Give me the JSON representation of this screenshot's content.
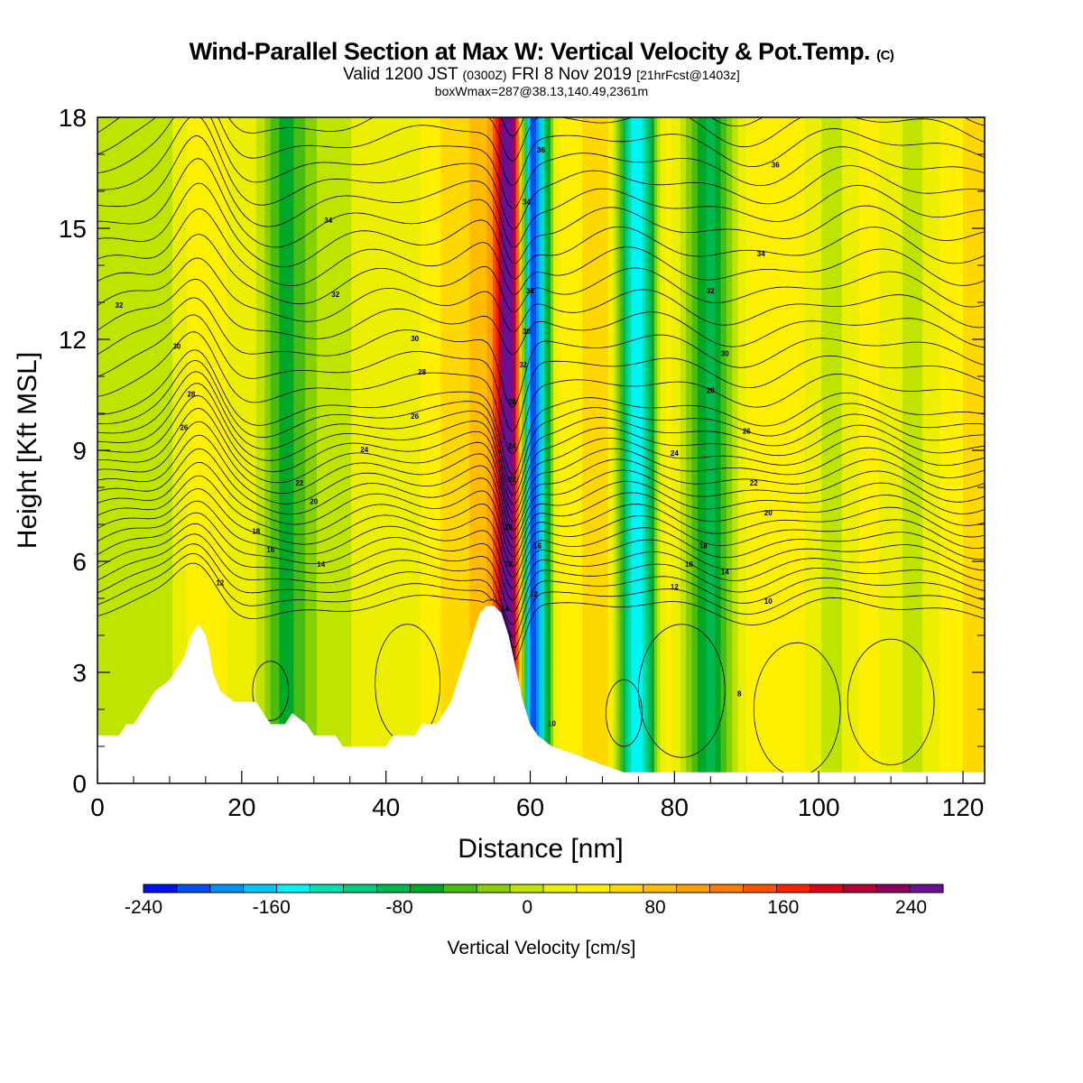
{
  "title": {
    "main": "Wind-Parallel Section at Max W: Vertical Velocity & Pot.Temp.",
    "main_unit": "(C)",
    "valid_prefix": "Valid 1200 JST",
    "valid_utc": "(0300Z)",
    "valid_date": "FRI 8 Nov 2019",
    "forecast": "[21hrFcst@1403z]",
    "box_info": "boxWmax=287@38.13,140.49,2361m"
  },
  "colors": {
    "scale": [
      "#0010ee",
      "#0050f4",
      "#0090f8",
      "#00c8ff",
      "#00f4f4",
      "#00e0b0",
      "#00cc80",
      "#00b850",
      "#00a828",
      "#48bc10",
      "#88d000",
      "#c0e400",
      "#ecf000",
      "#fff000",
      "#ffd800",
      "#ffbc00",
      "#ffa000",
      "#ff7c00",
      "#ff5000",
      "#ff2000",
      "#e00018",
      "#b80038",
      "#900060",
      "#6a1090"
    ],
    "terrain": "#ffffff",
    "contour": "#000000"
  },
  "chart_data": {
    "type": "heatmap",
    "xlabel": "Distance [nm]",
    "ylabel": "Height [Kft MSL]",
    "xlim": [
      0,
      123
    ],
    "ylim": [
      0,
      18
    ],
    "xticks": [
      0,
      20,
      40,
      60,
      80,
      100,
      120
    ],
    "yticks": [
      0,
      3,
      6,
      9,
      12,
      15,
      18
    ],
    "colorbar": {
      "title": "Vertical Velocity [cm/s]",
      "min": -240,
      "max": 240,
      "step": 20,
      "tick_values": [
        -240,
        -160,
        -80,
        0,
        80,
        160,
        240
      ]
    },
    "terrain_profile": [
      [
        0,
        1.3
      ],
      [
        3,
        1.3
      ],
      [
        4,
        1.6
      ],
      [
        5,
        1.6
      ],
      [
        6,
        1.9
      ],
      [
        7,
        2.2
      ],
      [
        8,
        2.5
      ],
      [
        10,
        2.8
      ],
      [
        11,
        3.1
      ],
      [
        12,
        3.4
      ],
      [
        12.5,
        3.7
      ],
      [
        13,
        4.0
      ],
      [
        14,
        4.3
      ],
      [
        15,
        4.0
      ],
      [
        15.5,
        3.6
      ],
      [
        16,
        3.0
      ],
      [
        17,
        2.5
      ],
      [
        19,
        2.2
      ],
      [
        22,
        2.2
      ],
      [
        23,
        1.9
      ],
      [
        24,
        1.6
      ],
      [
        26,
        1.6
      ],
      [
        27,
        1.9
      ],
      [
        29,
        1.6
      ],
      [
        30,
        1.3
      ],
      [
        33,
        1.3
      ],
      [
        34,
        1.0
      ],
      [
        40,
        1.0
      ],
      [
        41,
        1.3
      ],
      [
        44,
        1.3
      ],
      [
        45,
        1.6
      ],
      [
        47,
        1.6
      ],
      [
        48,
        1.9
      ],
      [
        49,
        2.2
      ],
      [
        50,
        2.8
      ],
      [
        51,
        3.4
      ],
      [
        52,
        4.0
      ],
      [
        53,
        4.6
      ],
      [
        54,
        4.8
      ],
      [
        55,
        4.8
      ],
      [
        56,
        4.6
      ],
      [
        57,
        4.0
      ],
      [
        58,
        3.1
      ],
      [
        59,
        2.2
      ],
      [
        60,
        1.6
      ],
      [
        61,
        1.3
      ],
      [
        63,
        1.0
      ],
      [
        66,
        0.8
      ],
      [
        70,
        0.5
      ],
      [
        73,
        0.3
      ],
      [
        123,
        0.3
      ]
    ],
    "vertical_velocity_bands": [
      {
        "x": 3,
        "w": -6
      },
      {
        "x": 9,
        "w": -6
      },
      {
        "x": 15,
        "w": 35
      },
      {
        "x": 21,
        "w": 6
      },
      {
        "x": 26,
        "w": -65
      },
      {
        "x": 32,
        "w": -8
      },
      {
        "x": 39,
        "w": 12
      },
      {
        "x": 44,
        "w": 18
      },
      {
        "x": 50,
        "w": 50
      },
      {
        "x": 54,
        "w": 80
      },
      {
        "x": 57,
        "w": 250
      },
      {
        "x": 60.5,
        "w": -210
      },
      {
        "x": 64,
        "w": 20
      },
      {
        "x": 70,
        "w": 55
      },
      {
        "x": 75,
        "w": -155
      },
      {
        "x": 79,
        "w": 25
      },
      {
        "x": 85,
        "w": -85
      },
      {
        "x": 90,
        "w": 20
      },
      {
        "x": 96,
        "w": 30
      },
      {
        "x": 102,
        "w": -5
      },
      {
        "x": 107,
        "w": 25
      },
      {
        "x": 113,
        "w": -5
      },
      {
        "x": 120,
        "w": 40
      }
    ],
    "theta_contour_labels": [
      {
        "x": 32,
        "y": 15.2,
        "text": "34"
      },
      {
        "x": 33,
        "y": 13.2,
        "text": "32"
      },
      {
        "x": 3,
        "y": 12.9,
        "text": "32"
      },
      {
        "x": 44,
        "y": 12.0,
        "text": "30"
      },
      {
        "x": 11,
        "y": 11.8,
        "text": "30"
      },
      {
        "x": 45,
        "y": 11.1,
        "text": "28"
      },
      {
        "x": 13,
        "y": 10.5,
        "text": "28"
      },
      {
        "x": 44,
        "y": 9.9,
        "text": "26"
      },
      {
        "x": 12,
        "y": 9.6,
        "text": "26"
      },
      {
        "x": 37,
        "y": 9.0,
        "text": "24"
      },
      {
        "x": 28,
        "y": 8.1,
        "text": "22"
      },
      {
        "x": 30,
        "y": 7.6,
        "text": "20"
      },
      {
        "x": 22,
        "y": 6.8,
        "text": "18"
      },
      {
        "x": 24,
        "y": 6.3,
        "text": "16"
      },
      {
        "x": 31,
        "y": 5.9,
        "text": "14"
      },
      {
        "x": 17,
        "y": 5.4,
        "text": "12"
      },
      {
        "x": 61.5,
        "y": 17.1,
        "text": "36"
      },
      {
        "x": 59.5,
        "y": 15.7,
        "text": "34"
      },
      {
        "x": 60,
        "y": 13.3,
        "text": "32"
      },
      {
        "x": 59.5,
        "y": 12.2,
        "text": "30"
      },
      {
        "x": 59,
        "y": 11.3,
        "text": "32"
      },
      {
        "x": 57.5,
        "y": 10.3,
        "text": "28"
      },
      {
        "x": 57.5,
        "y": 9.1,
        "text": "24"
      },
      {
        "x": 57.5,
        "y": 8.2,
        "text": "22"
      },
      {
        "x": 57,
        "y": 6.9,
        "text": "20"
      },
      {
        "x": 61,
        "y": 6.4,
        "text": "16"
      },
      {
        "x": 57,
        "y": 5.9,
        "text": "18"
      },
      {
        "x": 60.5,
        "y": 5.1,
        "text": "12"
      },
      {
        "x": 56.5,
        "y": 4.7,
        "text": "14"
      },
      {
        "x": 63,
        "y": 1.6,
        "text": "10"
      },
      {
        "x": 94,
        "y": 16.7,
        "text": "36"
      },
      {
        "x": 92,
        "y": 14.3,
        "text": "34"
      },
      {
        "x": 85,
        "y": 13.3,
        "text": "32"
      },
      {
        "x": 87,
        "y": 11.6,
        "text": "30"
      },
      {
        "x": 85,
        "y": 10.6,
        "text": "28"
      },
      {
        "x": 90,
        "y": 9.5,
        "text": "26"
      },
      {
        "x": 80,
        "y": 8.9,
        "text": "24"
      },
      {
        "x": 91,
        "y": 8.1,
        "text": "22"
      },
      {
        "x": 93,
        "y": 7.3,
        "text": "20"
      },
      {
        "x": 84,
        "y": 6.4,
        "text": "18"
      },
      {
        "x": 82,
        "y": 5.9,
        "text": "16"
      },
      {
        "x": 87,
        "y": 5.7,
        "text": "14"
      },
      {
        "x": 80,
        "y": 5.3,
        "text": "12"
      },
      {
        "x": 93,
        "y": 4.9,
        "text": "10"
      },
      {
        "x": 89,
        "y": 2.4,
        "text": "8"
      }
    ]
  }
}
